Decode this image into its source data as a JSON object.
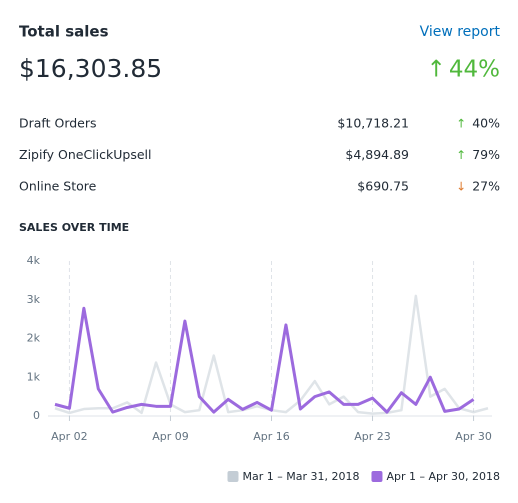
{
  "header": {
    "title": "Total sales",
    "link": "View report",
    "total": "$16,303.85",
    "change": "44%",
    "direction": "up"
  },
  "rows": [
    {
      "name": "Draft Orders",
      "amount": "$10,718.21",
      "change": "40%",
      "direction": "up"
    },
    {
      "name": "Zipify OneClickUpsell",
      "amount": "$4,894.89",
      "change": "79%",
      "direction": "up"
    },
    {
      "name": "Online Store",
      "amount": "$690.75",
      "change": "27%",
      "direction": "down"
    }
  ],
  "chart_data": {
    "type": "line",
    "title": "SALES OVER TIME",
    "categories": [
      null,
      "Apr 02",
      null,
      null,
      null,
      null,
      null,
      null,
      "Apr 09",
      null,
      null,
      null,
      null,
      null,
      null,
      "Apr 16",
      null,
      null,
      null,
      null,
      null,
      null,
      "Apr 23",
      null,
      null,
      null,
      null,
      null,
      null,
      "Apr 30",
      null
    ],
    "series": [
      {
        "name": "Mar 1 – Mar 31, 2018",
        "color": "#c4cdd5",
        "values": [
          200,
          80,
          180,
          200,
          200,
          350,
          80,
          1380,
          300,
          100,
          150,
          1560,
          100,
          150,
          250,
          150,
          100,
          400,
          900,
          300,
          500,
          100,
          60,
          80,
          150,
          3100,
          500,
          700,
          200,
          100,
          200
        ]
      },
      {
        "name": "Apr 1 – Apr 30, 2018",
        "color": "#9c6ade",
        "values": [
          300,
          200,
          2780,
          700,
          100,
          220,
          300,
          250,
          250,
          2450,
          500,
          100,
          430,
          170,
          350,
          150,
          2350,
          180,
          500,
          620,
          300,
          300,
          460,
          100,
          600,
          300,
          1000,
          120,
          180,
          430,
          null
        ]
      }
    ],
    "ylim": [
      0,
      4000
    ],
    "yticks": [
      0,
      {
        "value": 1000,
        "label": "1k"
      },
      {
        "value": 2000,
        "label": "2k"
      },
      {
        "value": 3000,
        "label": "3k"
      },
      {
        "value": 4000,
        "label": "4k"
      }
    ],
    "grid": true
  }
}
